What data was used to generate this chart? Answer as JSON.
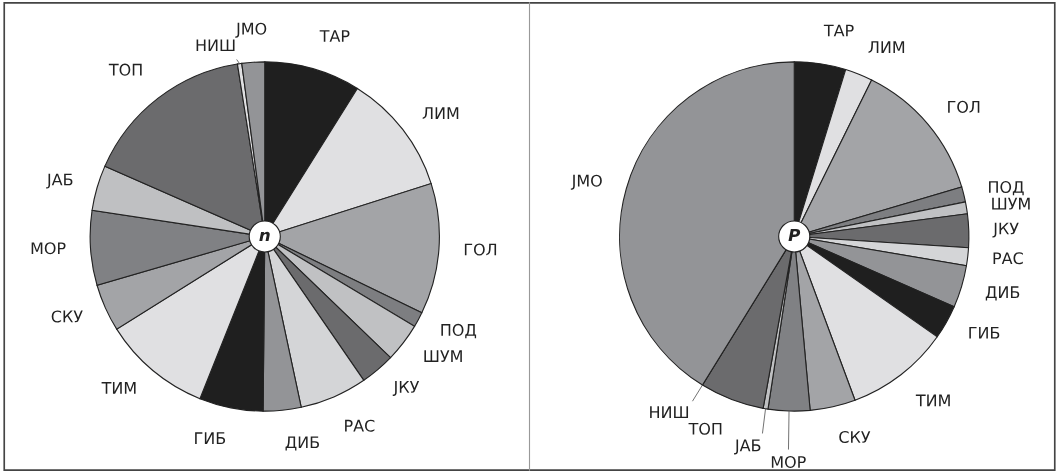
{
  "chart_data": [
    {
      "type": "pie",
      "annotations": [
        "n"
      ],
      "categories": [
        "ТАР",
        "ЛИМ",
        "ГОЛ",
        "ПОД",
        "ШУМ",
        "ЈКУ",
        "РАС",
        "ДИБ",
        "ГИБ",
        "ТИМ",
        "СКУ",
        "МОР",
        "ЈАБ",
        "ТОП",
        "НИШ",
        "ЈМО"
      ],
      "values": [
        8.9,
        11.2,
        12.1,
        1.4,
        3.6,
        3.2,
        6.25,
        3.5,
        5.9,
        10.05,
        4.4,
        6.9,
        4.2,
        15.9,
        0.4,
        2.1
      ],
      "colors": [
        "#1f1f1f",
        "#e0e0e2",
        "#a3a4a7",
        "#7d7e81",
        "#c0c1c3",
        "#6b6b6d",
        "#d4d5d7",
        "#939497",
        "#1f1f1f",
        "#e0e0e2",
        "#a3a4a7",
        "#808184",
        "#bfc0c2",
        "#6b6b6d",
        "#e0e0e2",
        "#939497"
      ]
    },
    {
      "type": "pie",
      "annotations": [
        "P"
      ],
      "categories": [
        "ТАР",
        "ЛИМ",
        "ГОЛ",
        "ПОД",
        "ШУМ",
        "ЈКУ",
        "РАС",
        "ДИБ",
        "ГИБ",
        "ТИМ",
        "СКУ",
        "МОР",
        "ЈАБ",
        "ТОП",
        "НИШ",
        "ЈМО"
      ],
      "values": [
        4.75,
        2.55,
        13.1,
        1.4,
        1.1,
        3.1,
        1.65,
        3.9,
        3.15,
        9.6,
        4.2,
        3.85,
        0.45,
        5.95,
        null,
        41.15
      ],
      "colors": [
        "#1f1f1f",
        "#e0e0e2",
        "#a3a4a7",
        "#7d7e81",
        "#c0c1c3",
        "#6b6b6d",
        "#d4d5d7",
        "#939497",
        "#1f1f1f",
        "#e0e0e2",
        "#a3a4a7",
        "#808184",
        "#bfc0c2",
        "#6b6b6d",
        "#e0e0e2",
        "#939497"
      ]
    }
  ]
}
